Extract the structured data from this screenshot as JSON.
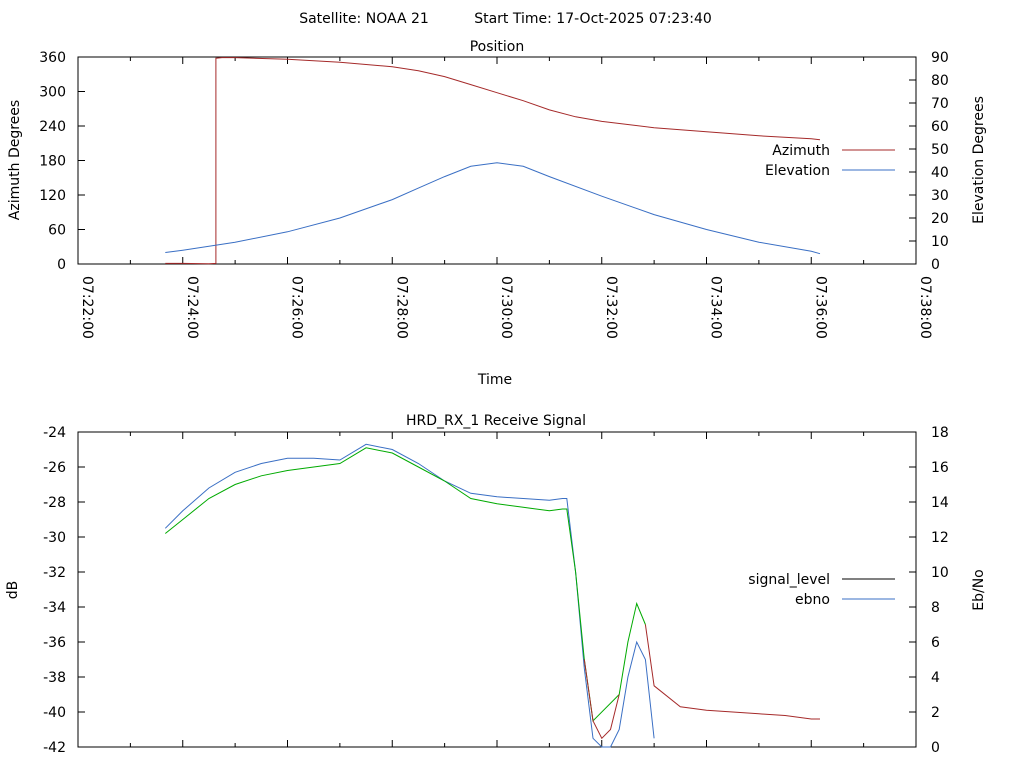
{
  "header": {
    "satellite": "Satellite: NOAA 21",
    "start_time": "Start Time: 17-Oct-2025 07:23:40"
  },
  "colors": {
    "azimuth": "#a52a2a",
    "elevation": "#3a6fc4",
    "signal_level": "#000000",
    "ebno": "#3a6fc4",
    "signal_drawn_upper": "#00aa00",
    "signal_drawn_lower": "#a52a2a"
  },
  "chart_data": [
    {
      "id": "position",
      "type": "line",
      "title": "Position",
      "xlabel": "Time",
      "ylabel": "Azimuth Degrees",
      "y2label": "Elevation Degrees",
      "xlim": [
        "07:22:00",
        "07:38:00"
      ],
      "ylim": [
        0,
        360
      ],
      "y2lim": [
        0,
        90
      ],
      "x_tick_labels": [
        "07:22:00",
        "07:24:00",
        "07:26:00",
        "07:28:00",
        "07:30:00",
        "07:32:00",
        "07:34:00",
        "07:36:00",
        "07:38:00"
      ],
      "y_tick_labels": [
        "0",
        "60",
        "120",
        "180",
        "240",
        "300",
        "360"
      ],
      "y2_tick_labels": [
        "0",
        "10",
        "20",
        "30",
        "40",
        "50",
        "60",
        "70",
        "80",
        "90"
      ],
      "legend_position": "right",
      "series": [
        {
          "name": "Azimuth",
          "axis": "y",
          "color": "#a52a2a",
          "x": [
            "07:23:40",
            "07:24:00",
            "07:24:30",
            "07:24:38",
            "07:24:38",
            "07:24:45",
            "07:25:00",
            "07:26:00",
            "07:27:00",
            "07:28:00",
            "07:28:30",
            "07:29:00",
            "07:29:30",
            "07:30:00",
            "07:30:30",
            "07:31:00",
            "07:31:30",
            "07:32:00",
            "07:33:00",
            "07:34:00",
            "07:35:00",
            "07:36:00",
            "07:36:10"
          ],
          "y": [
            1,
            1,
            0.5,
            1,
            358,
            359,
            359,
            356,
            351,
            343,
            336,
            326,
            312,
            298,
            284,
            268,
            256,
            248,
            237,
            230,
            223,
            218,
            216
          ]
        },
        {
          "name": "Elevation",
          "axis": "y2",
          "color": "#3a6fc4",
          "x": [
            "07:23:40",
            "07:24:00",
            "07:25:00",
            "07:26:00",
            "07:27:00",
            "07:28:00",
            "07:28:30",
            "07:29:00",
            "07:29:30",
            "07:30:00",
            "07:30:30",
            "07:31:00",
            "07:32:00",
            "07:33:00",
            "07:34:00",
            "07:35:00",
            "07:36:00",
            "07:36:10"
          ],
          "y": [
            5,
            6,
            9.5,
            14,
            20,
            28,
            33,
            38,
            42.5,
            44,
            42.5,
            38,
            29.5,
            21.5,
            15,
            9.5,
            5.5,
            4.5
          ]
        }
      ]
    },
    {
      "id": "receive-signal",
      "type": "line",
      "title": "HRD_RX_1 Receive Signal",
      "ylabel": "dB",
      "y2label": "Eb/No",
      "xlim": [
        "07:22:00",
        "07:38:00"
      ],
      "ylim": [
        -42,
        -24
      ],
      "y2lim": [
        0,
        18
      ],
      "y_tick_labels": [
        "-42",
        "-40",
        "-38",
        "-36",
        "-34",
        "-32",
        "-30",
        "-28",
        "-26",
        "-24"
      ],
      "y2_tick_labels": [
        "0",
        "2",
        "4",
        "6",
        "8",
        "10",
        "12",
        "14",
        "16",
        "18"
      ],
      "legend_position": "right",
      "series": [
        {
          "name": "signal_level",
          "axis": "y",
          "color": "#000000",
          "x": [
            "07:23:40",
            "07:24:00",
            "07:24:30",
            "07:25:00",
            "07:25:30",
            "07:26:00",
            "07:26:30",
            "07:27:00",
            "07:27:30",
            "07:28:00",
            "07:28:30",
            "07:29:00",
            "07:29:30",
            "07:30:00",
            "07:30:30",
            "07:31:00",
            "07:31:15",
            "07:31:20",
            "07:31:30",
            "07:31:40",
            "07:31:50",
            "07:32:00",
            "07:32:10",
            "07:32:20",
            "07:32:30",
            "07:32:40",
            "07:32:50",
            "07:33:00",
            "07:33:30",
            "07:34:00",
            "07:34:30",
            "07:35:00",
            "07:35:30",
            "07:36:00",
            "07:36:10"
          ],
          "y": [
            -29.8,
            -29.0,
            -27.8,
            -27.0,
            -26.5,
            -26.2,
            -26.0,
            -25.8,
            -24.9,
            -25.2,
            -26.0,
            -26.8,
            -27.8,
            -28.1,
            -28.3,
            -28.5,
            -28.4,
            -28.4,
            -32.0,
            -37.0,
            -40.5,
            -41.5,
            -41.0,
            -39.0,
            -36.0,
            -33.8,
            -35.0,
            -38.5,
            -39.7,
            -39.9,
            -40.0,
            -40.1,
            -40.2,
            -40.4,
            -40.4
          ]
        },
        {
          "name": "ebno",
          "axis": "y2",
          "color": "#3a6fc4",
          "x": [
            "07:23:40",
            "07:24:00",
            "07:24:30",
            "07:25:00",
            "07:25:30",
            "07:26:00",
            "07:26:30",
            "07:27:00",
            "07:27:30",
            "07:28:00",
            "07:28:30",
            "07:29:00",
            "07:29:30",
            "07:30:00",
            "07:30:30",
            "07:31:00",
            "07:31:15",
            "07:31:20",
            "07:31:30",
            "07:31:40",
            "07:31:50",
            "07:32:00",
            "07:32:10",
            "07:32:20",
            "07:32:30",
            "07:32:40",
            "07:32:50",
            "07:33:00"
          ],
          "y": [
            12.5,
            13.5,
            14.8,
            15.7,
            16.2,
            16.5,
            16.5,
            16.4,
            17.3,
            17.0,
            16.2,
            15.2,
            14.5,
            14.3,
            14.2,
            14.1,
            14.2,
            14.2,
            10.0,
            4.5,
            0.5,
            -1.0,
            -1.0,
            1.0,
            4.0,
            6.0,
            5.0,
            0.5
          ]
        }
      ]
    }
  ]
}
